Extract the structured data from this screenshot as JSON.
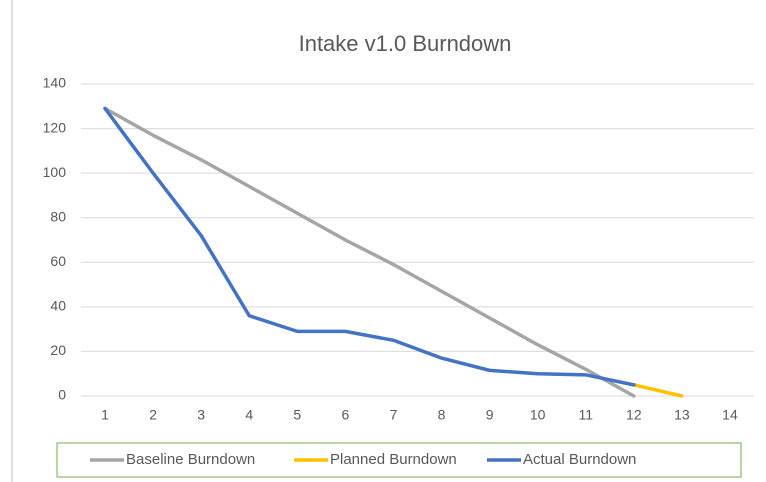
{
  "chart_data": {
    "type": "line",
    "title": "Intake v1.0 Burndown",
    "categories": [
      "1",
      "2",
      "3",
      "4",
      "5",
      "6",
      "7",
      "8",
      "9",
      "10",
      "11",
      "12",
      "13",
      "14"
    ],
    "series": [
      {
        "name": "Baseline Burndown",
        "color": "#a5a5a5",
        "values": [
          129,
          117,
          106,
          94,
          82,
          70,
          59,
          47,
          35,
          23,
          12,
          0,
          null,
          null
        ]
      },
      {
        "name": "Planned Burndown",
        "color": "#ffc000",
        "values": [
          null,
          null,
          null,
          null,
          null,
          null,
          null,
          null,
          null,
          null,
          null,
          5,
          0,
          null
        ]
      },
      {
        "name": "Actual Burndown",
        "color": "#4472c4",
        "values": [
          129,
          100,
          72,
          36,
          29,
          29,
          25,
          17,
          11.5,
          10,
          9.5,
          5,
          null,
          null
        ]
      }
    ],
    "ylim": [
      0,
      140
    ],
    "yticks": [
      0,
      20,
      40,
      60,
      80,
      100,
      120,
      140
    ],
    "grid": true,
    "legend": "bottom"
  }
}
